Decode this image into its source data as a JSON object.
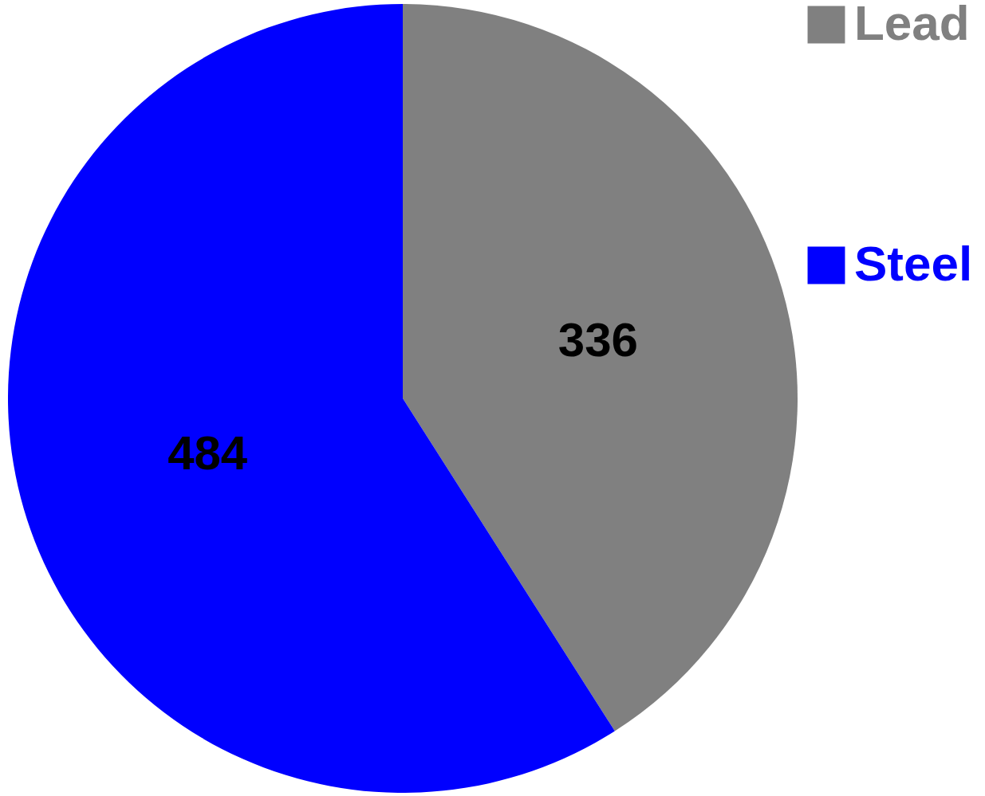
{
  "chart_data": {
    "type": "pie",
    "categories": [
      "Lead",
      "Steel"
    ],
    "values": [
      336,
      484
    ],
    "colors": [
      "#808080",
      "#0000ff"
    ],
    "data_labels": true,
    "legend": "right"
  }
}
